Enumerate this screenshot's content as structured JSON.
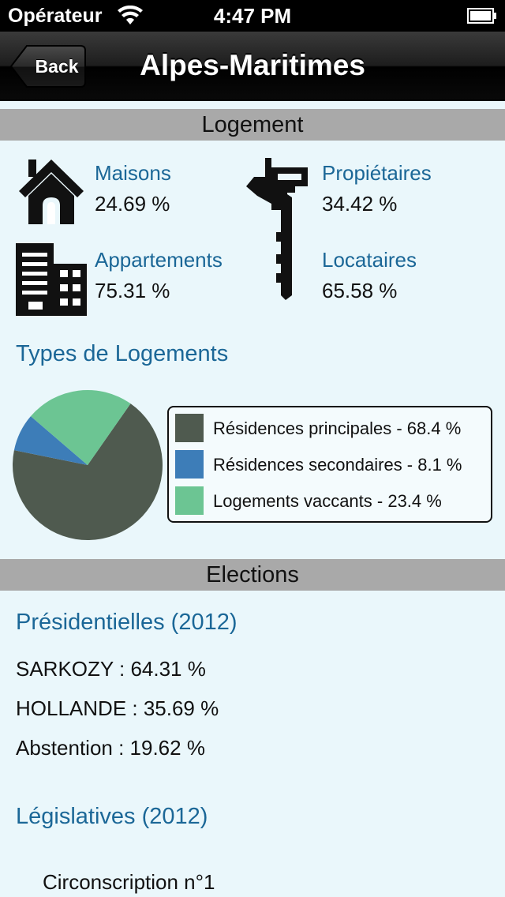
{
  "status_bar": {
    "carrier": "Opérateur",
    "time": "4:47 PM",
    "wifi_icon": "wifi-icon",
    "battery_icon": "battery-icon"
  },
  "nav": {
    "back_label": "Back",
    "title": "Alpes-Maritimes"
  },
  "logement": {
    "header": "Logement",
    "stats": [
      {
        "label": "Maisons",
        "value": "24.69 %",
        "icon": "house-icon"
      },
      {
        "label": "Propiétaires",
        "value": "34.42 %",
        "icon": "key-icon"
      },
      {
        "label": "Appartements",
        "value": "75.31 %",
        "icon": "building-icon"
      },
      {
        "label": "Locataires",
        "value": "65.58 %",
        "icon": "key-icon"
      }
    ],
    "types_heading": "Types de Logements"
  },
  "chart_data": {
    "type": "pie",
    "slices": [
      {
        "name": "Résidences principales",
        "value": 68.4,
        "color": "#4f5a4f"
      },
      {
        "name": "Résidences secondaires",
        "value": 8.1,
        "color": "#3d7db8"
      },
      {
        "name": "Logements vaccants",
        "value": 23.4,
        "color": "#6cc593"
      }
    ],
    "legend": [
      "Résidences principales - 68.4 %",
      "Résidences secondaires - 8.1 %",
      "Logements vaccants - 23.4 %"
    ],
    "legend_placement": "right"
  },
  "elections": {
    "header": "Elections",
    "presidentielles": {
      "heading": "Présidentielles (2012)",
      "lines": [
        "SARKOZY : 64.31 %",
        "HOLLANDE : 35.69 %",
        "Abstention : 19.62 %"
      ]
    },
    "legislatives": {
      "heading": "Législatives (2012)",
      "lines": [
        "Circonscription n°1"
      ]
    }
  },
  "colors": {
    "accent": "#1b6797",
    "background": "#eaf7fb",
    "section_header": "#a9a9a9"
  }
}
